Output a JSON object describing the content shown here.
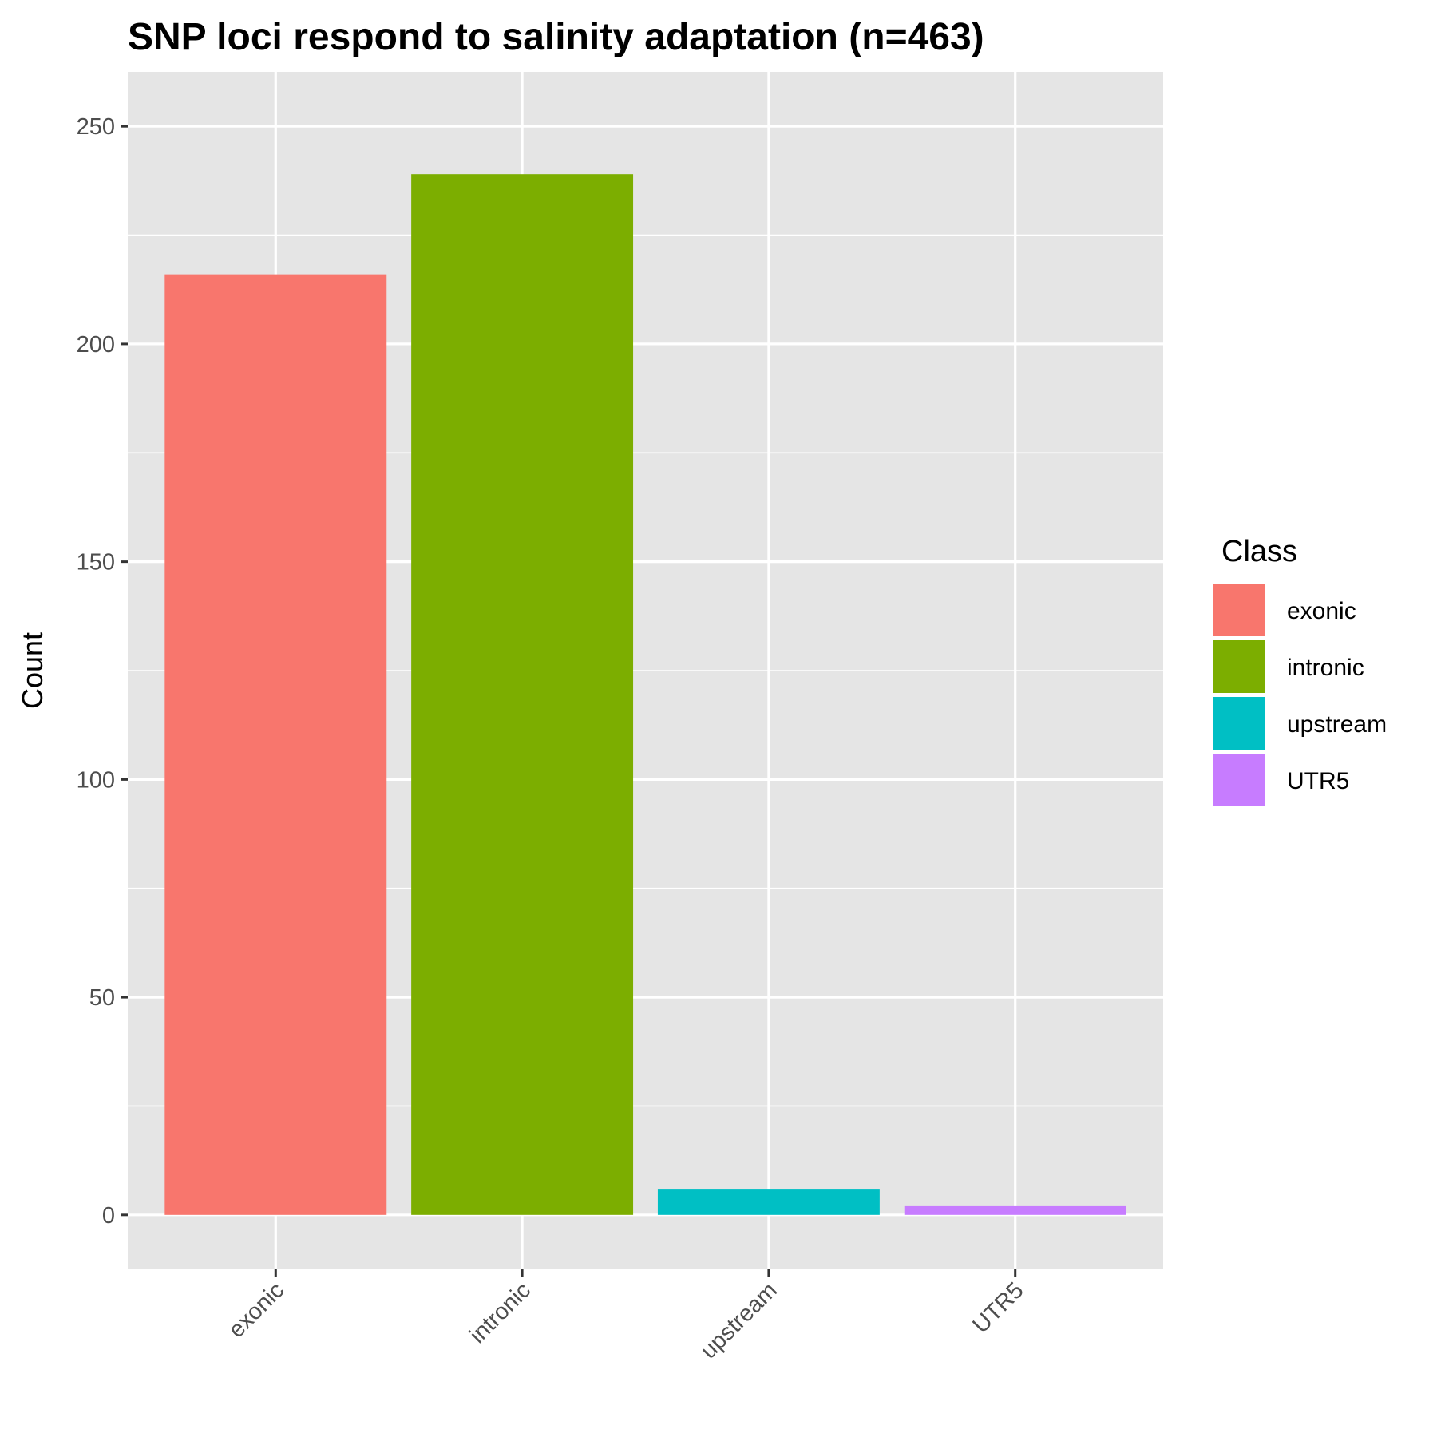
{
  "chart_data": {
    "type": "bar",
    "title": "SNP loci respond to salinity adaptation (n=463)",
    "xlabel": "",
    "ylabel": "Count",
    "categories": [
      "exonic",
      "intronic",
      "upstream",
      "UTR5"
    ],
    "values": [
      216,
      239,
      6,
      2
    ],
    "ylim": [
      -12.5,
      250
    ],
    "yticks": [
      0,
      50,
      100,
      150,
      200,
      250
    ],
    "grid": true,
    "legend": {
      "title": "Class",
      "position": "right",
      "entries": [
        "exonic",
        "intronic",
        "upstream",
        "UTR5"
      ]
    },
    "colors": [
      "#F8766D",
      "#7CAE00",
      "#00BFC4",
      "#C77CFF"
    ],
    "panel_background": "#E5E5E5",
    "x_tick_rotation": "45"
  }
}
